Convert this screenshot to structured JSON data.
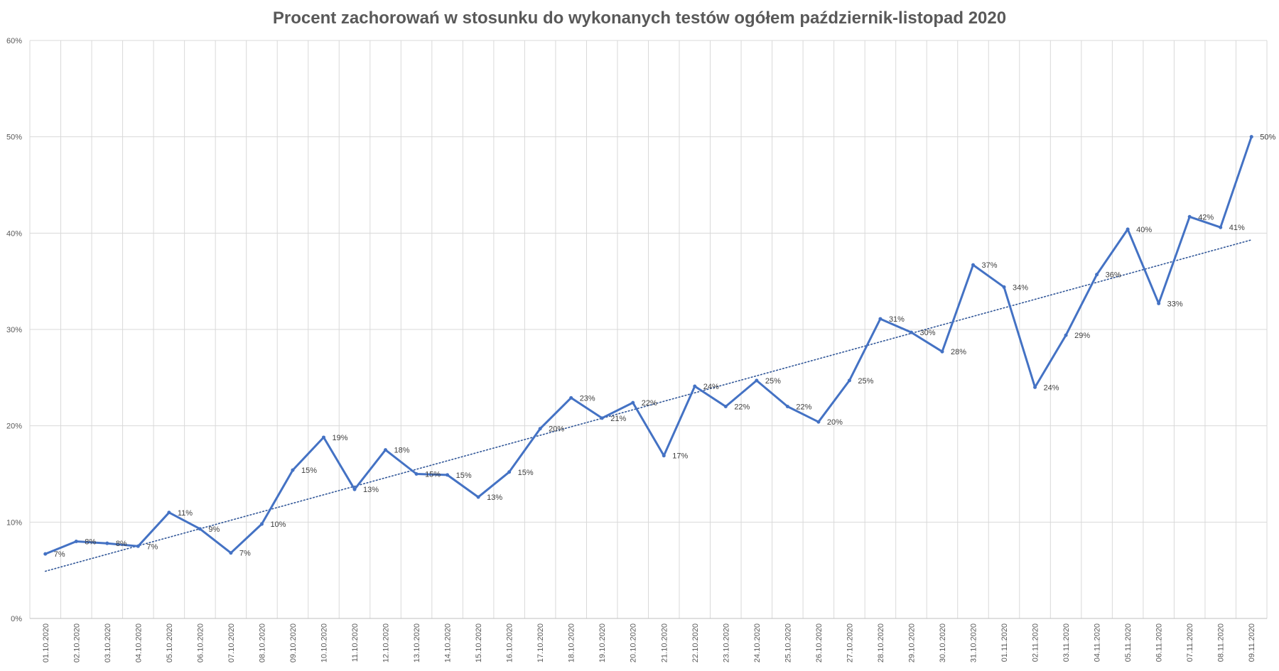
{
  "chart_data": {
    "type": "line",
    "title": "Procent zachorowań w stosunku do wykonanych testów ogółem październik-listopad 2020",
    "xlabel": "",
    "ylabel": "",
    "ylim": [
      0,
      60
    ],
    "yticks": [
      "0%",
      "10%",
      "20%",
      "30%",
      "40%",
      "50%",
      "60%"
    ],
    "grid": true,
    "legend": "none",
    "colors": {
      "line": "#4472C4",
      "trend": "#2F5597",
      "grid": "#D9D9D9",
      "text": "#595959"
    },
    "categories": [
      "01.10.2020",
      "02.10.2020",
      "03.10.2020",
      "04.10.2020",
      "05.10.2020",
      "06.10.2020",
      "07.10.2020",
      "08.10.2020",
      "09.10.2020",
      "10.10.2020",
      "11.10.2020",
      "12.10.2020",
      "13.10.2020",
      "14.10.2020",
      "15.10.2020",
      "16.10.2020",
      "17.10.2020",
      "18.10.2020",
      "19.10.2020",
      "20.10.2020",
      "21.10.2020",
      "22.10.2020",
      "23.10.2020",
      "24.10.2020",
      "25.10.2020",
      "26.10.2020",
      "27.10.2020",
      "28.10.2020",
      "29.10.2020",
      "30.10.2020",
      "31.10.2020",
      "01.11.2020",
      "02.11.2020",
      "03.11.2020",
      "04.11.2020",
      "05.11.2020",
      "06.11.2020",
      "07.11.2020",
      "08.11.2020",
      "09.11.2020"
    ],
    "series": [
      {
        "values": [
          6.7,
          8.0,
          7.8,
          7.5,
          11.0,
          9.3,
          6.8,
          9.8,
          15.4,
          18.8,
          13.4,
          17.5,
          15.0,
          14.9,
          12.6,
          15.2,
          19.7,
          22.9,
          20.8,
          22.4,
          16.9,
          24.1,
          22.0,
          24.7,
          22.0,
          20.4,
          24.7,
          31.1,
          29.7,
          27.7,
          36.7,
          34.4,
          24.0,
          29.4,
          35.7,
          40.4,
          32.7,
          41.7,
          40.6,
          50.0
        ],
        "labels": [
          "7%",
          "8%",
          "8%",
          "7%",
          "11%",
          "9%",
          "7%",
          "10%",
          "15%",
          "19%",
          "13%",
          "18%",
          "15%",
          "15%",
          "13%",
          "15%",
          "20%",
          "23%",
          "21%",
          "22%",
          "17%",
          "24%",
          "22%",
          "25%",
          "22%",
          "20%",
          "25%",
          "31%",
          "30%",
          "28%",
          "37%",
          "34%",
          "24%",
          "29%",
          "36%",
          "40%",
          "33%",
          "42%",
          "41%",
          "50%"
        ]
      }
    ],
    "trendline": {
      "type": "linear",
      "style": "dotted",
      "start": 4.9,
      "end": 39.3
    }
  }
}
